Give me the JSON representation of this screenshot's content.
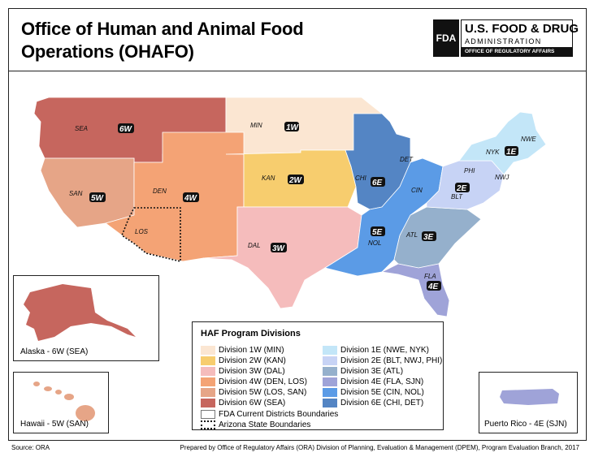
{
  "title_line1": "Office of Human and Animal Food",
  "title_line2": "Operations (OHAFO)",
  "logo": {
    "fda": "FDA",
    "line1": "U.S. FOOD & DRUG",
    "line2": "ADMINISTRATION",
    "line3": "OFFICE OF REGULATORY AFFAIRS"
  },
  "colors": {
    "1W": "#fbe6d2",
    "2W": "#f7cd6e",
    "3W": "#f5bcbc",
    "4W": "#f4a375",
    "5W": "#e6a587",
    "6W": "#c6665e",
    "1E": "#c3e6f8",
    "2E": "#c7d3f5",
    "3E": "#95b0cc",
    "4E": "#9fa3d8",
    "5E": "#5b9be6",
    "6E": "#5485c4"
  },
  "districts": {
    "SEA": "SEA",
    "SEA_div": "6W",
    "MIN": "MIN",
    "MIN_div": "1W",
    "KAN": "KAN",
    "KAN_div": "2W",
    "SAN": "SAN",
    "SAN_div": "5W",
    "DEN": "DEN",
    "DEN_div": "4W",
    "LOS": "LOS",
    "DAL": "DAL",
    "DAL_div": "3W",
    "CHI": "CHI",
    "CHI_div": "6E",
    "DET": "DET",
    "CIN": "CIN",
    "NOL": "NOL",
    "NOL_div": "5E",
    "ATL": "ATL",
    "ATL_div": "3E",
    "FLA": "FLA",
    "FLA_div": "4E",
    "PHI": "PHI",
    "BLT": "BLT",
    "BLT_div": "2E",
    "NWJ": "NWJ",
    "NYK": "NYK",
    "NYK_div": "1E",
    "NWE": "NWE"
  },
  "insets": {
    "alaska": "Alaska - 6W (SEA)",
    "hawaii": "Hawaii - 5W (SAN)",
    "puerto_rico": "Puerto Rico - 4E (SJN)"
  },
  "legend": {
    "title": "HAF Program Divisions",
    "left": [
      "Division 1W (MIN)",
      "Division 2W (KAN)",
      "Division 3W (DAL)",
      "Division 4W (DEN, LOS)",
      "Division 5W (LOS, SAN)",
      "Division 6W (SEA)"
    ],
    "right": [
      "Division 1E (NWE, NYK)",
      "Division 2E (BLT, NWJ, PHI)",
      "Division 3E (ATL)",
      "Division 4E (FLA, SJN)",
      "Division 5E (CIN, NOL)",
      "Division 6E (CHI, DET)"
    ],
    "boundary1": "FDA Current Districts Boundaries",
    "boundary2": "Arizona State Boundaries"
  },
  "footer": {
    "source": "Source: ORA",
    "prepared": "Prepared by Office of Regulatory Affairs (ORA) Division of Planning, Evaluation & Management (DPEM), Program Evaluation Branch, 2017"
  }
}
